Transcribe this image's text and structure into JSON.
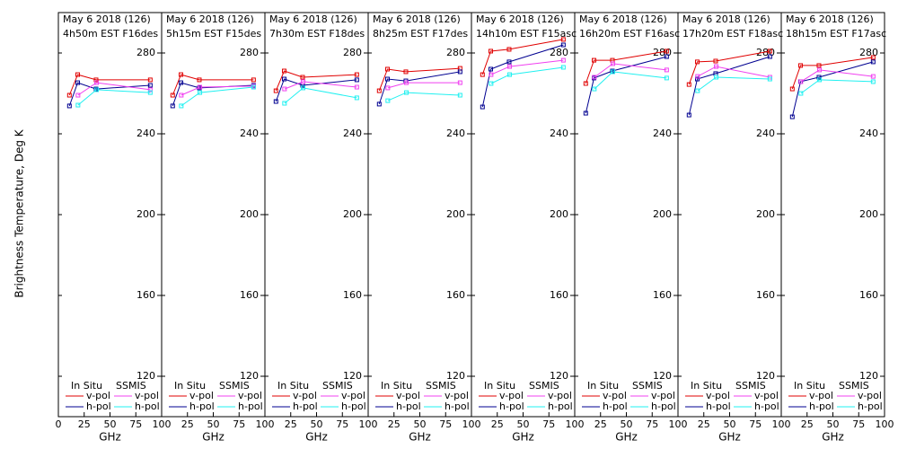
{
  "ylabel": "Brightness Temperature, Deg K",
  "chart_data": [
    {
      "type": "line",
      "title": "May 6 2018 (126)",
      "subtitle": "4h50m EST F16des",
      "xlabel": "GHz",
      "xlim": [
        0,
        100
      ],
      "xticks": [
        0,
        25,
        50,
        75,
        100
      ],
      "ylim": [
        100,
        300
      ],
      "yticks": [
        120,
        160,
        200,
        240,
        280
      ],
      "series_groups": [
        {
          "name": "In Situ",
          "series": [
            {
              "name": "v-pol",
              "color": "#e00000",
              "x": [
                10.7,
                18.7,
                36.5,
                89
              ],
              "values": [
                259.1,
                269.3,
                266.7,
                266.7
              ]
            },
            {
              "name": "h-pol",
              "color": "#000090",
              "x": [
                10.7,
                18.7,
                36.5,
                89
              ],
              "values": [
                253.8,
                265.3,
                262.2,
                264.0
              ]
            }
          ]
        },
        {
          "name": "SSMIS",
          "series": [
            {
              "name": "v-pol",
              "color": "#f040f0",
              "x": [
                19,
                37,
                89
              ],
              "values": [
                259.1,
                265.3,
                261.8
              ]
            },
            {
              "name": "h-pol",
              "color": "#20f0f0",
              "x": [
                19,
                37,
                89
              ],
              "values": [
                254.2,
                261.8,
                260.4
              ]
            }
          ]
        }
      ]
    },
    {
      "type": "line",
      "title": "May 6 2018 (126)",
      "subtitle": "5h15m EST F15des",
      "xlabel": "GHz",
      "xlim": [
        0,
        100
      ],
      "xticks": [
        25,
        50,
        75,
        100
      ],
      "ylim": [
        100,
        300
      ],
      "yticks": [
        120,
        160,
        200,
        240,
        280
      ],
      "series_groups": [
        {
          "name": "In Situ",
          "series": [
            {
              "name": "v-pol",
              "color": "#e00000",
              "x": [
                10.7,
                18.7,
                36.5,
                89
              ],
              "values": [
                259.1,
                269.3,
                266.7,
                266.7
              ]
            },
            {
              "name": "h-pol",
              "color": "#000090",
              "x": [
                10.7,
                18.7,
                36.5,
                89
              ],
              "values": [
                253.8,
                265.3,
                262.7,
                264.0
              ]
            }
          ]
        },
        {
          "name": "SSMIS",
          "series": [
            {
              "name": "v-pol",
              "color": "#f040f0",
              "x": [
                19,
                37,
                89
              ],
              "values": [
                259.1,
                263.1,
                263.6
              ]
            },
            {
              "name": "h-pol",
              "color": "#20f0f0",
              "x": [
                19,
                37,
                89
              ],
              "values": [
                253.8,
                260.4,
                263.1
              ]
            }
          ]
        }
      ]
    },
    {
      "type": "line",
      "title": "May 6 2018 (126)",
      "subtitle": "7h30m EST F18des",
      "xlabel": "GHz",
      "xlim": [
        0,
        100
      ],
      "xticks": [
        25,
        50,
        75,
        100
      ],
      "ylim": [
        100,
        300
      ],
      "yticks": [
        120,
        160,
        200,
        240,
        280
      ],
      "series_groups": [
        {
          "name": "In Situ",
          "series": [
            {
              "name": "v-pol",
              "color": "#e00000",
              "x": [
                10.7,
                18.7,
                36.5,
                89
              ],
              "values": [
                261.3,
                271.1,
                268.0,
                269.3
              ]
            },
            {
              "name": "h-pol",
              "color": "#000090",
              "x": [
                10.7,
                18.7,
                36.5,
                89
              ],
              "values": [
                256.0,
                267.1,
                264.0,
                266.7
              ]
            }
          ]
        },
        {
          "name": "SSMIS",
          "series": [
            {
              "name": "v-pol",
              "color": "#f040f0",
              "x": [
                19,
                37,
                89
              ],
              "values": [
                262.2,
                265.8,
                263.1
              ]
            },
            {
              "name": "h-pol",
              "color": "#20f0f0",
              "x": [
                19,
                37,
                89
              ],
              "values": [
                255.1,
                262.7,
                257.8
              ]
            }
          ]
        }
      ]
    },
    {
      "type": "line",
      "title": "May 6 2018 (126)",
      "subtitle": "8h25m EST F17des",
      "xlabel": "GHz",
      "xlim": [
        0,
        100
      ],
      "xticks": [
        25,
        50,
        75,
        100
      ],
      "ylim": [
        100,
        300
      ],
      "yticks": [
        120,
        160,
        200,
        240,
        280
      ],
      "series_groups": [
        {
          "name": "In Situ",
          "series": [
            {
              "name": "v-pol",
              "color": "#e00000",
              "x": [
                10.7,
                18.7,
                36.5,
                89
              ],
              "values": [
                261.3,
                272.0,
                270.7,
                272.4
              ]
            },
            {
              "name": "h-pol",
              "color": "#000090",
              "x": [
                10.7,
                18.7,
                36.5,
                89
              ],
              "values": [
                254.7,
                267.1,
                266.2,
                270.7
              ]
            }
          ]
        },
        {
          "name": "SSMIS",
          "series": [
            {
              "name": "v-pol",
              "color": "#f040f0",
              "x": [
                19,
                37,
                89
              ],
              "values": [
                262.7,
                265.3,
                265.3
              ]
            },
            {
              "name": "h-pol",
              "color": "#20f0f0",
              "x": [
                19,
                37,
                89
              ],
              "values": [
                256.4,
                260.4,
                259.1
              ]
            }
          ]
        }
      ]
    },
    {
      "type": "line",
      "title": "May 6 2018 (126)",
      "subtitle": "14h10m EST F15asc",
      "xlabel": "GHz",
      "xlim": [
        0,
        100
      ],
      "xticks": [
        25,
        50,
        75,
        100
      ],
      "ylim": [
        100,
        300
      ],
      "yticks": [
        120,
        160,
        200,
        240,
        280
      ],
      "series_groups": [
        {
          "name": "In Situ",
          "series": [
            {
              "name": "v-pol",
              "color": "#e00000",
              "x": [
                10.7,
                18.7,
                36.5,
                89
              ],
              "values": [
                269.3,
                280.9,
                281.8,
                286.7
              ]
            },
            {
              "name": "h-pol",
              "color": "#000090",
              "x": [
                10.7,
                18.7,
                36.5,
                89
              ],
              "values": [
                253.3,
                272.0,
                275.6,
                284.0
              ]
            }
          ]
        },
        {
          "name": "SSMIS",
          "series": [
            {
              "name": "v-pol",
              "color": "#f040f0",
              "x": [
                19,
                37,
                89
              ],
              "values": [
                269.3,
                273.3,
                276.4
              ]
            },
            {
              "name": "h-pol",
              "color": "#20f0f0",
              "x": [
                19,
                37,
                89
              ],
              "values": [
                264.9,
                269.3,
                272.9
              ]
            }
          ]
        }
      ]
    },
    {
      "type": "line",
      "title": "May 6 2018 (126)",
      "subtitle": "16h20m EST F16asc",
      "xlabel": "GHz",
      "xlim": [
        0,
        100
      ],
      "xticks": [
        25,
        50,
        75,
        100
      ],
      "ylim": [
        100,
        300
      ],
      "yticks": [
        120,
        160,
        200,
        240,
        280
      ],
      "series_groups": [
        {
          "name": "In Situ",
          "series": [
            {
              "name": "v-pol",
              "color": "#e00000",
              "x": [
                10.7,
                18.7,
                36.5,
                89
              ],
              "values": [
                264.9,
                276.4,
                276.4,
                280.9
              ]
            },
            {
              "name": "h-pol",
              "color": "#000090",
              "x": [
                10.7,
                18.7,
                36.5,
                89
              ],
              "values": [
                250.2,
                267.6,
                271.1,
                278.2
              ]
            }
          ]
        },
        {
          "name": "SSMIS",
          "series": [
            {
              "name": "v-pol",
              "color": "#f040f0",
              "x": [
                19,
                37,
                89
              ],
              "values": [
                268.0,
                274.7,
                271.6
              ]
            },
            {
              "name": "h-pol",
              "color": "#20f0f0",
              "x": [
                19,
                37,
                89
              ],
              "values": [
                262.2,
                270.7,
                267.6
              ]
            }
          ]
        }
      ]
    },
    {
      "type": "line",
      "title": "May 6 2018 (126)",
      "subtitle": "17h20m EST F18asc",
      "xlabel": "GHz",
      "xlim": [
        0,
        100
      ],
      "xticks": [
        25,
        50,
        75,
        100
      ],
      "ylim": [
        100,
        300
      ],
      "yticks": [
        120,
        160,
        200,
        240,
        280
      ],
      "series_groups": [
        {
          "name": "In Situ",
          "series": [
            {
              "name": "v-pol",
              "color": "#e00000",
              "x": [
                10.7,
                18.7,
                36.5,
                89
              ],
              "values": [
                264.4,
                275.6,
                276.0,
                280.9
              ]
            },
            {
              "name": "h-pol",
              "color": "#000090",
              "x": [
                10.7,
                18.7,
                36.5,
                89
              ],
              "values": [
                249.3,
                267.1,
                269.8,
                278.2
              ]
            }
          ]
        },
        {
          "name": "SSMIS",
          "series": [
            {
              "name": "v-pol",
              "color": "#f040f0",
              "x": [
                19,
                37,
                89
              ],
              "values": [
                268.4,
                273.3,
                268.0
              ]
            },
            {
              "name": "h-pol",
              "color": "#20f0f0",
              "x": [
                19,
                37,
                89
              ],
              "values": [
                261.3,
                268.0,
                267.1
              ]
            }
          ]
        }
      ]
    },
    {
      "type": "line",
      "title": "May 6 2018 (126)",
      "subtitle": "18h15m EST F17asc",
      "xlabel": "GHz",
      "xlim": [
        0,
        100
      ],
      "xticks": [
        25,
        50,
        75,
        100
      ],
      "ylim": [
        100,
        300
      ],
      "yticks": [
        120,
        160,
        200,
        240,
        280
      ],
      "series_groups": [
        {
          "name": "In Situ",
          "series": [
            {
              "name": "v-pol",
              "color": "#e00000",
              "x": [
                10.7,
                18.7,
                36.5,
                89
              ],
              "values": [
                262.2,
                273.8,
                273.8,
                277.8
              ]
            },
            {
              "name": "h-pol",
              "color": "#000090",
              "x": [
                10.7,
                18.7,
                36.5,
                89
              ],
              "values": [
                248.4,
                265.8,
                268.0,
                275.6
              ]
            }
          ]
        },
        {
          "name": "SSMIS",
          "series": [
            {
              "name": "v-pol",
              "color": "#f040f0",
              "x": [
                19,
                37,
                89
              ],
              "values": [
                265.8,
                271.6,
                268.4
              ]
            },
            {
              "name": "h-pol",
              "color": "#20f0f0",
              "x": [
                19,
                37,
                89
              ],
              "values": [
                260.0,
                266.7,
                265.8
              ]
            }
          ]
        }
      ]
    }
  ]
}
